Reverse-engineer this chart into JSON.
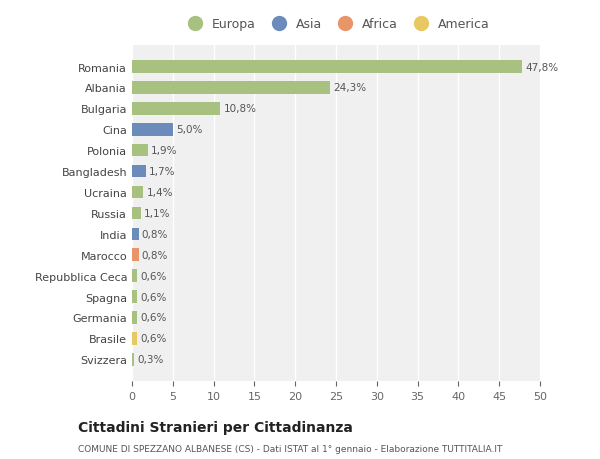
{
  "countries": [
    "Romania",
    "Albania",
    "Bulgaria",
    "Cina",
    "Polonia",
    "Bangladesh",
    "Ucraina",
    "Russia",
    "India",
    "Marocco",
    "Repubblica Ceca",
    "Spagna",
    "Germania",
    "Brasile",
    "Svizzera"
  ],
  "values": [
    47.8,
    24.3,
    10.8,
    5.0,
    1.9,
    1.7,
    1.4,
    1.1,
    0.8,
    0.8,
    0.6,
    0.6,
    0.6,
    0.6,
    0.3
  ],
  "labels": [
    "47,8%",
    "24,3%",
    "10,8%",
    "5,0%",
    "1,9%",
    "1,7%",
    "1,4%",
    "1,1%",
    "0,8%",
    "0,8%",
    "0,6%",
    "0,6%",
    "0,6%",
    "0,6%",
    "0,3%"
  ],
  "categories": [
    "Europa",
    "Europa",
    "Europa",
    "Asia",
    "Europa",
    "Asia",
    "Europa",
    "Europa",
    "Asia",
    "Africa",
    "Europa",
    "Europa",
    "Europa",
    "America",
    "Europa"
  ],
  "colors": {
    "Europa": "#a8c080",
    "Asia": "#6b8cba",
    "Africa": "#e8956a",
    "America": "#e8c860"
  },
  "legend_order": [
    "Europa",
    "Asia",
    "Africa",
    "America"
  ],
  "title": "Cittadini Stranieri per Cittadinanza",
  "subtitle": "COMUNE DI SPEZZANO ALBANESE (CS) - Dati ISTAT al 1° gennaio - Elaborazione TUTTITALIA.IT",
  "xlim": [
    0,
    50
  ],
  "xticks": [
    0,
    5,
    10,
    15,
    20,
    25,
    30,
    35,
    40,
    45,
    50
  ],
  "bg_color": "#ffffff",
  "plot_bg_color": "#f0f0f0",
  "grid_color": "#ffffff"
}
